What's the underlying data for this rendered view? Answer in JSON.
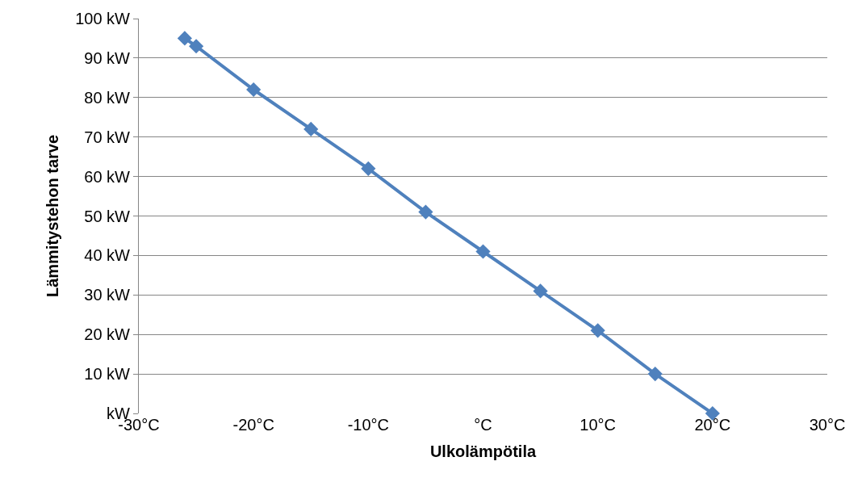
{
  "chart_data": {
    "type": "line",
    "xlabel": "Ulkolämpötila",
    "ylabel": "Lämmitystehon tarve",
    "x": [
      -26,
      -25,
      -20,
      -15,
      -10,
      -5,
      0,
      5,
      10,
      15,
      20
    ],
    "series": [
      {
        "color": "#4f81bd",
        "values": [
          95,
          93,
          82,
          72,
          62,
          51,
          41,
          31,
          21,
          10,
          0
        ]
      }
    ],
    "xlim": [
      -30,
      30
    ],
    "ylim": [
      0,
      100
    ],
    "xticks": [
      {
        "value": -30,
        "label": "-30°C"
      },
      {
        "value": -20,
        "label": "-20°C"
      },
      {
        "value": -10,
        "label": "-10°C"
      },
      {
        "value": 0,
        "label": "°C"
      },
      {
        "value": 10,
        "label": "10°C"
      },
      {
        "value": 20,
        "label": "20°C"
      },
      {
        "value": 30,
        "label": "30°C"
      }
    ],
    "yticks": [
      {
        "value": 0,
        "label": "kW"
      },
      {
        "value": 10,
        "label": "10 kW"
      },
      {
        "value": 20,
        "label": "20 kW"
      },
      {
        "value": 30,
        "label": "30 kW"
      },
      {
        "value": 40,
        "label": "40 kW"
      },
      {
        "value": 50,
        "label": "50 kW"
      },
      {
        "value": 60,
        "label": "60 kW"
      },
      {
        "value": 70,
        "label": "70 kW"
      },
      {
        "value": 80,
        "label": "80 kW"
      },
      {
        "value": 90,
        "label": "90 kW"
      },
      {
        "value": 100,
        "label": "100 kW"
      }
    ],
    "grid": "y",
    "marker": "diamond",
    "line_style": "solid",
    "legend": false
  }
}
